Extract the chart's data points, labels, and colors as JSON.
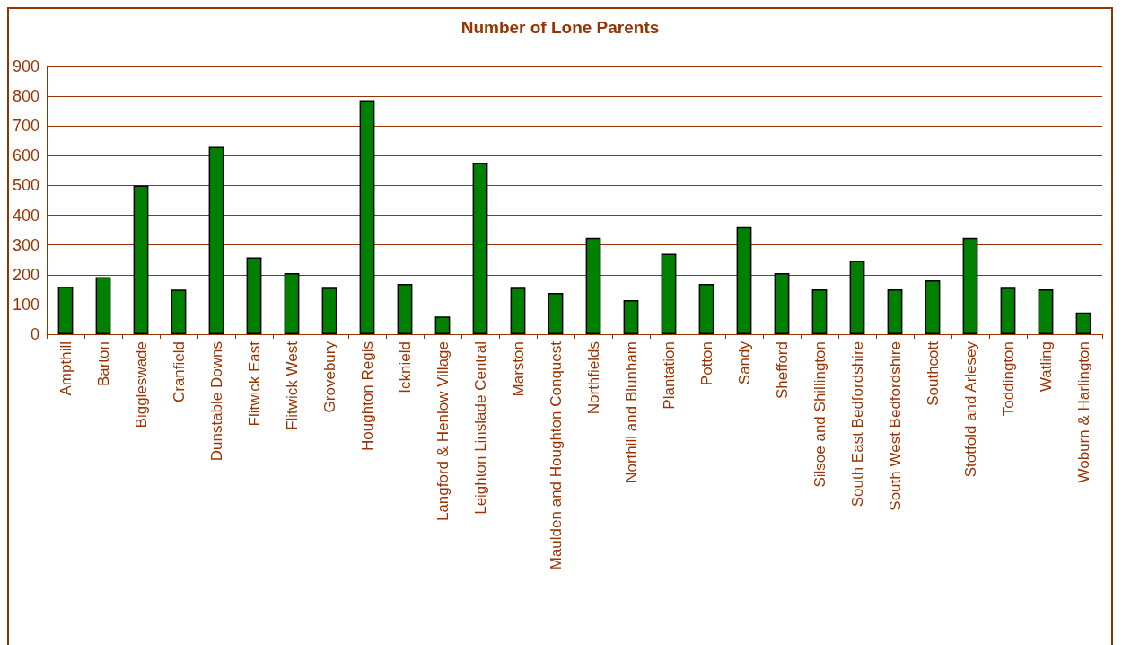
{
  "chart_data": {
    "type": "bar",
    "title": "Number of Lone Parents",
    "categories": [
      "Ampthill",
      "Barton",
      "Biggleswade",
      "Cranfield",
      "Dunstable Downs",
      "Flitwick East",
      "Flitwick West",
      "Grovebury",
      "Houghton Regis",
      "Icknield",
      "Langford & Henlow Village",
      "Leighton Linslade Central",
      "Marston",
      "Maulden and Houghton Conquest",
      "Northfields",
      "Northill and Blunham",
      "Plantation",
      "Potton",
      "Sandy",
      "Shefford",
      "Silsoe and Shillington",
      "South East Bedfordshire",
      "South West Bedfordshire",
      "Southcott",
      "Stotfold and Arlesey",
      "Toddington",
      "Watling",
      "Woburn & Harlington"
    ],
    "values": [
      160,
      192,
      500,
      150,
      630,
      258,
      205,
      156,
      787,
      169,
      60,
      576,
      156,
      139,
      324,
      115,
      270,
      169,
      360,
      205,
      151,
      247,
      151,
      181,
      324,
      156,
      151,
      73
    ],
    "color": "#008000",
    "ylim": [
      0,
      900
    ],
    "yticks": [
      0,
      100,
      200,
      300,
      400,
      500,
      600,
      700,
      800,
      900
    ],
    "grid": "y"
  }
}
